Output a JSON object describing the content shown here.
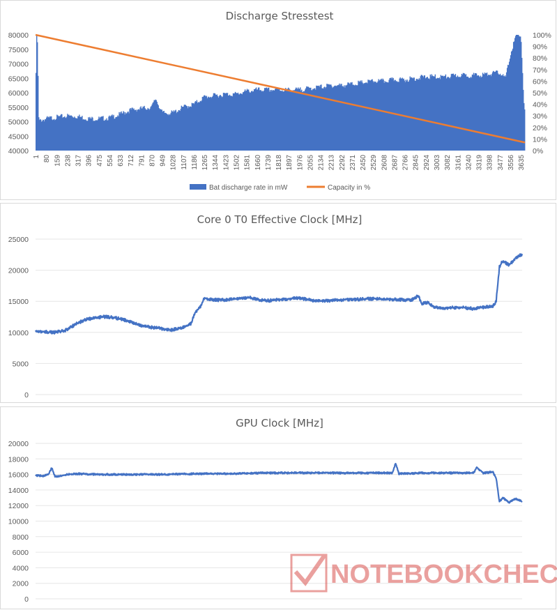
{
  "chart_data": [
    {
      "type": "bar",
      "title": "Discharge Stresstest",
      "series": [
        {
          "name": "Bat discharge rate in mW",
          "type": "bar",
          "axis": "left",
          "color": "#4472c4",
          "points": [
            [
              1,
              59000
            ],
            [
              8,
              80000
            ],
            [
              15,
              77000
            ],
            [
              25,
              50000
            ],
            [
              40,
              50500
            ],
            [
              80,
              51000
            ],
            [
              159,
              51500
            ],
            [
              238,
              52000
            ],
            [
              317,
              51800
            ],
            [
              396,
              51000
            ],
            [
              475,
              51000
            ],
            [
              554,
              51300
            ],
            [
              633,
              52500
            ],
            [
              712,
              54000
            ],
            [
              791,
              54500
            ],
            [
              870,
              55000
            ],
            [
              900,
              58000
            ],
            [
              949,
              53000
            ],
            [
              1028,
              53000
            ],
            [
              1107,
              55000
            ],
            [
              1186,
              56000
            ],
            [
              1265,
              58500
            ],
            [
              1344,
              59000
            ],
            [
              1423,
              59500
            ],
            [
              1502,
              59500
            ],
            [
              1581,
              60500
            ],
            [
              1660,
              61000
            ],
            [
              1739,
              61000
            ],
            [
              1818,
              61000
            ],
            [
              1897,
              61000
            ],
            [
              1976,
              61000
            ],
            [
              2055,
              61500
            ],
            [
              2134,
              62000
            ],
            [
              2213,
              62500
            ],
            [
              2292,
              62500
            ],
            [
              2371,
              63000
            ],
            [
              2450,
              63500
            ],
            [
              2529,
              64000
            ],
            [
              2608,
              64000
            ],
            [
              2687,
              64500
            ],
            [
              2766,
              64500
            ],
            [
              2845,
              65000
            ],
            [
              2924,
              65500
            ],
            [
              3003,
              65500
            ],
            [
              3082,
              65500
            ],
            [
              3161,
              66000
            ],
            [
              3240,
              66000
            ],
            [
              3319,
              66000
            ],
            [
              3398,
              66500
            ],
            [
              3477,
              67000
            ],
            [
              3520,
              65000
            ],
            [
              3556,
              73000
            ],
            [
              3600,
              80000
            ],
            [
              3635,
              80000
            ],
            [
              3660,
              54000
            ]
          ]
        },
        {
          "name": "Capacity in %",
          "type": "line",
          "axis": "right",
          "color": "#ed7d31",
          "points": [
            [
              1,
              100
            ],
            [
              3666,
              7
            ]
          ]
        }
      ],
      "x_ticks": [
        "1",
        "80",
        "159",
        "238",
        "317",
        "396",
        "475",
        "554",
        "633",
        "712",
        "791",
        "870",
        "949",
        "1028",
        "1107",
        "1186",
        "1265",
        "1344",
        "1423",
        "1502",
        "1581",
        "1660",
        "1739",
        "1818",
        "1897",
        "1976",
        "2055",
        "2134",
        "2213",
        "2292",
        "2371",
        "2450",
        "2529",
        "2608",
        "2687",
        "2766",
        "2845",
        "2924",
        "3003",
        "3082",
        "3161",
        "3240",
        "3319",
        "3398",
        "3477",
        "3556",
        "3635"
      ],
      "xlim": [
        1,
        3666
      ],
      "y_left_ticks": [
        "40000",
        "45000",
        "50000",
        "55000",
        "60000",
        "65000",
        "70000",
        "75000",
        "80000"
      ],
      "ylim_left": [
        40000,
        80000
      ],
      "y_right_ticks": [
        "0%",
        "10%",
        "20%",
        "30%",
        "40%",
        "50%",
        "60%",
        "70%",
        "80%",
        "90%",
        "100%"
      ],
      "ylim_right": [
        0,
        100
      ],
      "legend": "bottom"
    },
    {
      "type": "line",
      "title": "Core 0 T0 Effective Clock [MHz]",
      "series": [
        {
          "color": "#4472c4",
          "points": [
            [
              0,
              10200
            ],
            [
              3,
              10100
            ],
            [
              6,
              10000
            ],
            [
              9,
              10300
            ],
            [
              12,
              11200
            ],
            [
              15,
              12000
            ],
            [
              18,
              12300
            ],
            [
              21,
              12500
            ],
            [
              24,
              12400
            ],
            [
              27,
              12100
            ],
            [
              30,
              11500
            ],
            [
              33,
              11000
            ],
            [
              36,
              10800
            ],
            [
              39,
              10600
            ],
            [
              42,
              10400
            ],
            [
              45,
              10700
            ],
            [
              47,
              11100
            ],
            [
              48,
              11500
            ],
            [
              49,
              13000
            ],
            [
              50,
              13700
            ],
            [
              51,
              14200
            ],
            [
              52,
              15500
            ],
            [
              54,
              15300
            ],
            [
              57,
              15200
            ],
            [
              60,
              15300
            ],
            [
              63,
              15500
            ],
            [
              66,
              15600
            ],
            [
              69,
              15200
            ],
            [
              72,
              15100
            ],
            [
              75,
              15300
            ],
            [
              78,
              15400
            ],
            [
              81,
              15500
            ],
            [
              84,
              15300
            ],
            [
              87,
              15000
            ],
            [
              90,
              15100
            ],
            [
              93,
              15200
            ],
            [
              96,
              15300
            ],
            [
              99,
              15300
            ],
            [
              102,
              15400
            ],
            [
              105,
              15400
            ],
            [
              108,
              15300
            ],
            [
              111,
              15300
            ],
            [
              114,
              15200
            ],
            [
              116,
              15200
            ],
            [
              118,
              15900
            ],
            [
              119,
              14600
            ],
            [
              121,
              14800
            ],
            [
              123,
              14000
            ],
            [
              126,
              13900
            ],
            [
              129,
              14000
            ],
            [
              132,
              14000
            ],
            [
              135,
              13800
            ],
            [
              138,
              14000
            ],
            [
              141,
              14200
            ],
            [
              142,
              15000
            ],
            [
              143,
              20500
            ],
            [
              144,
              21500
            ],
            [
              146,
              20800
            ],
            [
              148,
              22000
            ],
            [
              150,
              22600
            ]
          ]
        }
      ],
      "xlim": [
        0,
        150
      ],
      "y_ticks": [
        "0",
        "5000",
        "10000",
        "15000",
        "20000",
        "25000"
      ],
      "ylim": [
        0,
        25000
      ]
    },
    {
      "type": "line",
      "title": "GPU Clock [MHz]",
      "series": [
        {
          "color": "#4472c4",
          "points": [
            [
              0,
              15900
            ],
            [
              2,
              15800
            ],
            [
              4,
              16000
            ],
            [
              5,
              16900
            ],
            [
              6,
              15700
            ],
            [
              10,
              16000
            ],
            [
              12,
              16100
            ],
            [
              20,
              16000
            ],
            [
              30,
              16000
            ],
            [
              40,
              16000
            ],
            [
              50,
              16100
            ],
            [
              60,
              16100
            ],
            [
              70,
              16200
            ],
            [
              80,
              16200
            ],
            [
              90,
              16200
            ],
            [
              100,
              16200
            ],
            [
              110,
              16200
            ],
            [
              111,
              17400
            ],
            [
              112,
              16100
            ],
            [
              120,
              16200
            ],
            [
              130,
              16200
            ],
            [
              135,
              16200
            ],
            [
              136,
              16900
            ],
            [
              138,
              16200
            ],
            [
              141,
              16300
            ],
            [
              142,
              15500
            ],
            [
              143,
              12500
            ],
            [
              144,
              13000
            ],
            [
              146,
              12400
            ],
            [
              148,
              12900
            ],
            [
              150,
              12500
            ]
          ]
        }
      ],
      "xlim": [
        0,
        150
      ],
      "y_ticks": [
        "0",
        "2000",
        "4000",
        "6000",
        "8000",
        "10000",
        "12000",
        "14000",
        "16000",
        "18000",
        "20000"
      ],
      "ylim": [
        0,
        20000
      ]
    }
  ],
  "watermark": {
    "text": "NOTEBOOKCHECK",
    "color": "#d9534f"
  }
}
